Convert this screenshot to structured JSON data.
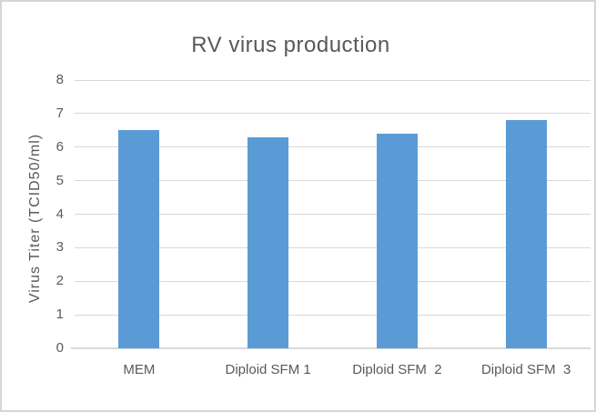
{
  "chart_data": {
    "type": "bar",
    "title": "RV virus production",
    "categories": [
      "MEM",
      "Diploid SFM 1",
      "Diploid SFM  2",
      "Diploid SFM  3"
    ],
    "values": [
      6.5,
      6.3,
      6.4,
      6.8
    ],
    "xlabel": "",
    "ylabel": "Virus Titer (TCID50/ml)",
    "ylim": [
      0,
      8
    ],
    "yticks": [
      0,
      1,
      2,
      3,
      4,
      5,
      6,
      7,
      8
    ],
    "grid": true,
    "legend": "none",
    "colors": {
      "bar": "#5b9bd5",
      "gridline": "#d9d9d9",
      "axis_line": "#d9d9d9",
      "text": "#595959",
      "frame_border": "#d6d6d6",
      "background": "#ffffff"
    }
  }
}
